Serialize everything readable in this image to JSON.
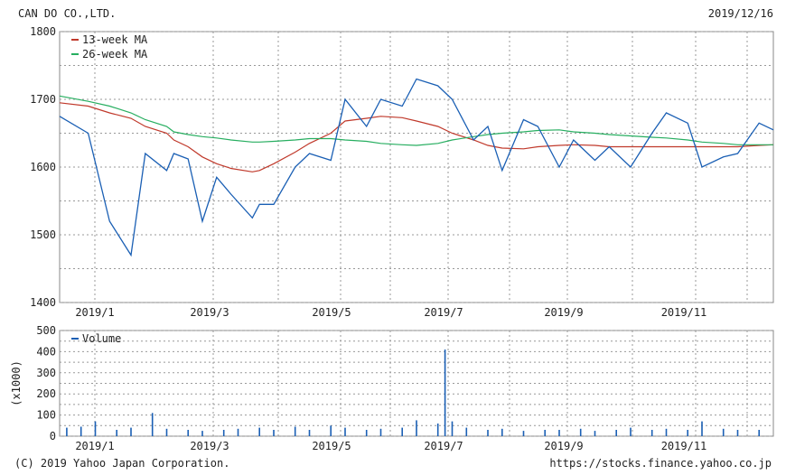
{
  "header": {
    "company": "CAN DO CO.,LTD.",
    "date": "2019/12/16"
  },
  "footer": {
    "copyright": "(C) 2019 Yahoo Japan Corporation.",
    "url": "https://stocks.finance.yahoo.co.jp"
  },
  "chart_data": [
    {
      "type": "line",
      "title": "",
      "ylim": [
        1400,
        1800
      ],
      "yticks": [
        "1800",
        "1700",
        "1600",
        "1500",
        "1400"
      ],
      "ytick_values": [
        1800,
        1700,
        1600,
        1500,
        1400
      ],
      "xticks": [
        "2019/1",
        "2019/3",
        "2019/5",
        "2019/7",
        "2019/9",
        "2019/11"
      ],
      "grid": true,
      "legend_position": "top-left",
      "colors": {
        "price": "#1a5fb4",
        "ma13": "#c0392b",
        "ma26": "#27ae60"
      },
      "x": [
        0,
        4,
        7,
        10,
        12,
        15,
        16,
        18,
        20,
        22,
        24,
        27,
        28,
        30,
        33,
        35,
        38,
        40,
        43,
        45,
        48,
        50,
        53,
        55,
        58,
        60,
        62,
        65,
        67,
        70,
        72,
        75,
        77,
        80,
        83,
        85,
        88,
        90,
        93,
        95,
        98,
        100
      ],
      "series": [
        {
          "name": "",
          "values": [
            1675,
            1650,
            1520,
            1470,
            1620,
            1595,
            1620,
            1612,
            1520,
            1585,
            1560,
            1525,
            1545,
            1545,
            1600,
            1620,
            1610,
            1700,
            1660,
            1700,
            1690,
            1730,
            1720,
            1700,
            1640,
            1660,
            1595,
            1670,
            1660,
            1600,
            1640,
            1610,
            1630,
            1600,
            1650,
            1680,
            1665,
            1600,
            1615,
            1620,
            1665,
            1655
          ]
        },
        {
          "name": "13-week MA",
          "values": [
            1695,
            1690,
            1680,
            1672,
            1660,
            1650,
            1640,
            1630,
            1615,
            1605,
            1598,
            1593,
            1595,
            1605,
            1622,
            1635,
            1650,
            1668,
            1672,
            1675,
            1673,
            1668,
            1660,
            1650,
            1640,
            1632,
            1628,
            1627,
            1630,
            1632,
            1633,
            1632,
            1630,
            1630,
            1630,
            1630,
            1630,
            1630,
            1630,
            1630,
            1632,
            1633
          ]
        },
        {
          "name": "26-week MA",
          "values": [
            1705,
            1697,
            1690,
            1680,
            1670,
            1660,
            1652,
            1648,
            1645,
            1643,
            1640,
            1637,
            1637,
            1638,
            1640,
            1642,
            1642,
            1640,
            1638,
            1635,
            1633,
            1632,
            1635,
            1640,
            1645,
            1648,
            1650,
            1652,
            1654,
            1655,
            1652,
            1650,
            1648,
            1646,
            1644,
            1643,
            1640,
            1637,
            1635,
            1633,
            1633,
            1633
          ]
        }
      ]
    },
    {
      "type": "bar",
      "title": "",
      "ylabel": "(x1000)",
      "ylim": [
        0,
        500
      ],
      "yticks": [
        "500",
        "400",
        "300",
        "200",
        "100",
        "0"
      ],
      "ytick_values": [
        500,
        400,
        300,
        200,
        100,
        0
      ],
      "xticks": [
        "2019/1",
        "2019/3",
        "2019/5",
        "2019/7",
        "2019/9",
        "2019/11"
      ],
      "grid": true,
      "legend_position": "top-left",
      "colors": {
        "volume": "#1a5fb4"
      },
      "x": [
        1,
        3,
        5,
        8,
        10,
        13,
        15,
        18,
        20,
        23,
        25,
        28,
        30,
        33,
        35,
        38,
        40,
        43,
        45,
        48,
        50,
        53,
        54,
        55,
        57,
        60,
        62,
        65,
        68,
        70,
        73,
        75,
        78,
        80,
        83,
        85,
        88,
        90,
        93,
        95,
        98
      ],
      "series": [
        {
          "name": "Volume",
          "values": [
            40,
            45,
            70,
            30,
            40,
            110,
            35,
            30,
            25,
            30,
            35,
            40,
            30,
            45,
            30,
            50,
            40,
            30,
            35,
            40,
            75,
            60,
            410,
            70,
            40,
            30,
            35,
            25,
            30,
            30,
            35,
            25,
            30,
            40,
            30,
            35,
            30,
            70,
            35,
            30,
            30
          ]
        }
      ]
    }
  ]
}
